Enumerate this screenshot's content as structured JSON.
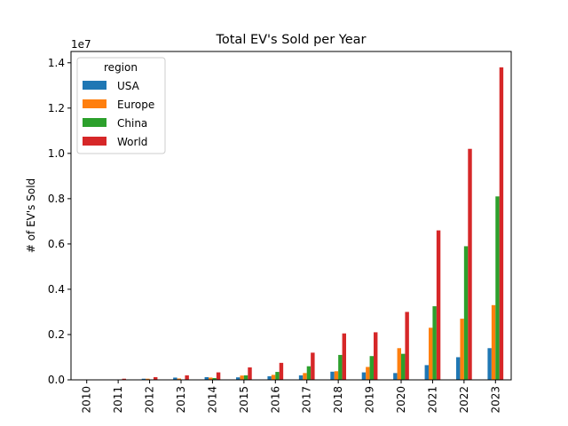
{
  "chart_data": {
    "type": "bar",
    "title": "Total EV's Sold per Year",
    "xlabel": "",
    "ylabel": "# of EV's Sold",
    "offset_label": "1e7",
    "legend_title": "region",
    "legend_position": "top-left",
    "grid": false,
    "ylim": [
      0,
      1.45
    ],
    "yticks": [
      "0.0",
      "0.2",
      "0.4",
      "0.6",
      "0.8",
      "1.0",
      "1.2",
      "1.4"
    ],
    "categories": [
      "2010",
      "2011",
      "2012",
      "2013",
      "2014",
      "2015",
      "2016",
      "2017",
      "2018",
      "2019",
      "2020",
      "2021",
      "2022",
      "2023"
    ],
    "series": [
      {
        "name": "USA",
        "color": "#1f77b4",
        "values": [
          0.0,
          0.002,
          0.005,
          0.01,
          0.012,
          0.011,
          0.016,
          0.02,
          0.036,
          0.033,
          0.03,
          0.065,
          0.1,
          0.14
        ]
      },
      {
        "name": "Europe",
        "color": "#ff7f0e",
        "values": [
          0.0,
          0.001,
          0.005,
          0.006,
          0.01,
          0.019,
          0.022,
          0.03,
          0.038,
          0.057,
          0.14,
          0.23,
          0.27,
          0.33
        ]
      },
      {
        "name": "China",
        "color": "#2ca02c",
        "values": [
          0.0,
          0.001,
          0.002,
          0.002,
          0.008,
          0.02,
          0.035,
          0.06,
          0.11,
          0.105,
          0.115,
          0.325,
          0.59,
          0.81
        ]
      },
      {
        "name": "World",
        "color": "#d62728",
        "values": [
          0.001,
          0.005,
          0.012,
          0.02,
          0.033,
          0.055,
          0.075,
          0.12,
          0.205,
          0.21,
          0.3,
          0.66,
          1.02,
          1.38
        ]
      }
    ]
  }
}
